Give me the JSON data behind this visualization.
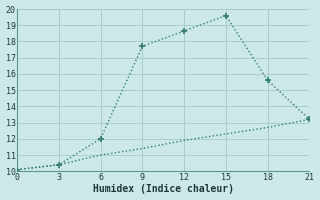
{
  "xlabel": "Humidex (Indice chaleur)",
  "background_color": "#cce8e8",
  "grid_color": "#aacccc",
  "line_color": "#2e7d6e",
  "xlim": [
    0,
    21
  ],
  "ylim": [
    10,
    20
  ],
  "xticks": [
    0,
    3,
    6,
    9,
    12,
    15,
    18,
    21
  ],
  "yticks": [
    10,
    11,
    12,
    13,
    14,
    15,
    16,
    17,
    18,
    19,
    20
  ],
  "line1_x": [
    0,
    3,
    6,
    9,
    12,
    15,
    18,
    21
  ],
  "line1_y": [
    10.1,
    10.4,
    12.0,
    17.7,
    18.65,
    19.6,
    15.6,
    13.2
  ],
  "line2_x": [
    0,
    3,
    6,
    9,
    12,
    15,
    18,
    21
  ],
  "line2_y": [
    10.1,
    10.4,
    11.0,
    11.4,
    11.9,
    12.3,
    12.7,
    13.2
  ]
}
